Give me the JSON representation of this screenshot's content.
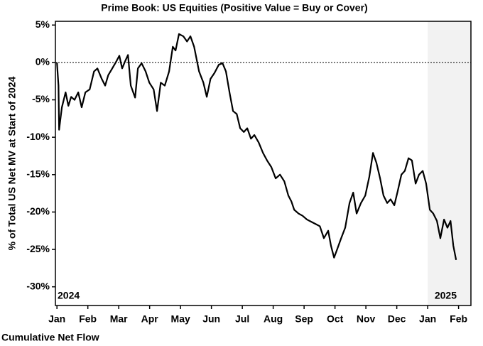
{
  "chart_data": {
    "type": "line",
    "title": "Prime Book: US Equities (Positive Value = Buy or Cover)",
    "y_label": "% of Total US Net MV at Start of 2024",
    "caption": "Cumulative Net Flow",
    "annotations": [
      "2024",
      "2025"
    ],
    "color": "#000000",
    "reference_line": 0,
    "shaded_from": 12,
    "shade_color": "#f2f2f2",
    "xlim": [
      -0.05,
      13.4
    ],
    "ylim": [
      -32.5,
      5.5
    ],
    "xticks": [
      {
        "value": 0,
        "label": "Jan"
      },
      {
        "value": 1,
        "label": "Feb"
      },
      {
        "value": 2,
        "label": "Mar"
      },
      {
        "value": 3,
        "label": "Apr"
      },
      {
        "value": 4,
        "label": "May"
      },
      {
        "value": 5,
        "label": "Jun"
      },
      {
        "value": 6,
        "label": "Jul"
      },
      {
        "value": 7,
        "label": "Aug"
      },
      {
        "value": 8,
        "label": "Sep"
      },
      {
        "value": 9,
        "label": "Oct"
      },
      {
        "value": 10,
        "label": "Nov"
      },
      {
        "value": 11,
        "label": "Dec"
      },
      {
        "value": 12,
        "label": "Jan"
      },
      {
        "value": 13,
        "label": "Feb"
      }
    ],
    "yticks": [
      {
        "value": 5,
        "label": "5%"
      },
      {
        "value": 0,
        "label": "0%"
      },
      {
        "value": -5,
        "label": "-5%"
      },
      {
        "value": -10,
        "label": "-10%"
      },
      {
        "value": -15,
        "label": "-15%"
      },
      {
        "value": -20,
        "label": "-20%"
      },
      {
        "value": -25,
        "label": "-25%"
      },
      {
        "value": -30,
        "label": "-30%"
      }
    ],
    "x": [
      0,
      0.05,
      0.07,
      0.16,
      0.28,
      0.37,
      0.46,
      0.57,
      0.69,
      0.8,
      0.92,
      1.06,
      1.2,
      1.31,
      1.45,
      1.56,
      1.66,
      1.79,
      1.93,
      2.02,
      2.11,
      2.21,
      2.3,
      2.39,
      2.53,
      2.62,
      2.74,
      2.87,
      2.99,
      3.13,
      3.24,
      3.36,
      3.49,
      3.63,
      3.75,
      3.84,
      3.95,
      4.09,
      4.21,
      4.32,
      4.44,
      4.6,
      4.74,
      4.85,
      4.97,
      5.1,
      5.24,
      5.36,
      5.47,
      5.59,
      5.7,
      5.82,
      5.93,
      6.05,
      6.16,
      6.28,
      6.39,
      6.53,
      6.67,
      6.8,
      6.94,
      7.08,
      7.22,
      7.36,
      7.49,
      7.59,
      7.68,
      7.82,
      7.95,
      8.09,
      8.23,
      8.37,
      8.51,
      8.64,
      8.78,
      8.87,
      8.97,
      9.06,
      9.2,
      9.33,
      9.47,
      9.59,
      9.7,
      9.84,
      9.98,
      10.11,
      10.23,
      10.34,
      10.46,
      10.57,
      10.69,
      10.8,
      10.92,
      11.03,
      11.15,
      11.26,
      11.38,
      11.49,
      11.61,
      11.72,
      11.84,
      11.95,
      12.07,
      12.18,
      12.3,
      12.41,
      12.53,
      12.64,
      12.74,
      12.83,
      12.92
    ],
    "values": [
      0,
      -3.1,
      -9,
      -6,
      -4,
      -5.8,
      -4.6,
      -5,
      -4,
      -6,
      -4,
      -3.6,
      -1.2,
      -0.8,
      -2.2,
      -3.1,
      -1.7,
      -0.8,
      0.2,
      0.9,
      -0.8,
      0.2,
      1,
      -3.1,
      -4.7,
      -0.8,
      -0.1,
      -1.2,
      -2.7,
      -3.6,
      -6.5,
      -2.7,
      -3.1,
      -1.2,
      2.1,
      1.6,
      3.8,
      3.5,
      2.8,
      3.5,
      2.1,
      -1.2,
      -2.7,
      -4.6,
      -2.2,
      -1.4,
      -0.3,
      -0.1,
      -1.2,
      -4.1,
      -6.5,
      -6.9,
      -8.8,
      -9.3,
      -8.8,
      -10.2,
      -9.7,
      -10.7,
      -12.1,
      -13.1,
      -14,
      -15.5,
      -15,
      -15.9,
      -17.8,
      -18.6,
      -19.7,
      -20.2,
      -20.5,
      -21,
      -21.3,
      -21.6,
      -21.9,
      -23.5,
      -22.5,
      -24.5,
      -26.1,
      -25.1,
      -23.5,
      -22.1,
      -18.8,
      -17.4,
      -20.2,
      -18.8,
      -17.8,
      -15.3,
      -12.1,
      -13.4,
      -15.5,
      -17.8,
      -18.8,
      -18.3,
      -19.1,
      -17.2,
      -15,
      -14.5,
      -12.8,
      -13.1,
      -16.2,
      -15,
      -14.5,
      -16.2,
      -19.7,
      -20.2,
      -21.2,
      -23.5,
      -21,
      -22.1,
      -21.2,
      -24.5,
      -26.4
    ]
  }
}
